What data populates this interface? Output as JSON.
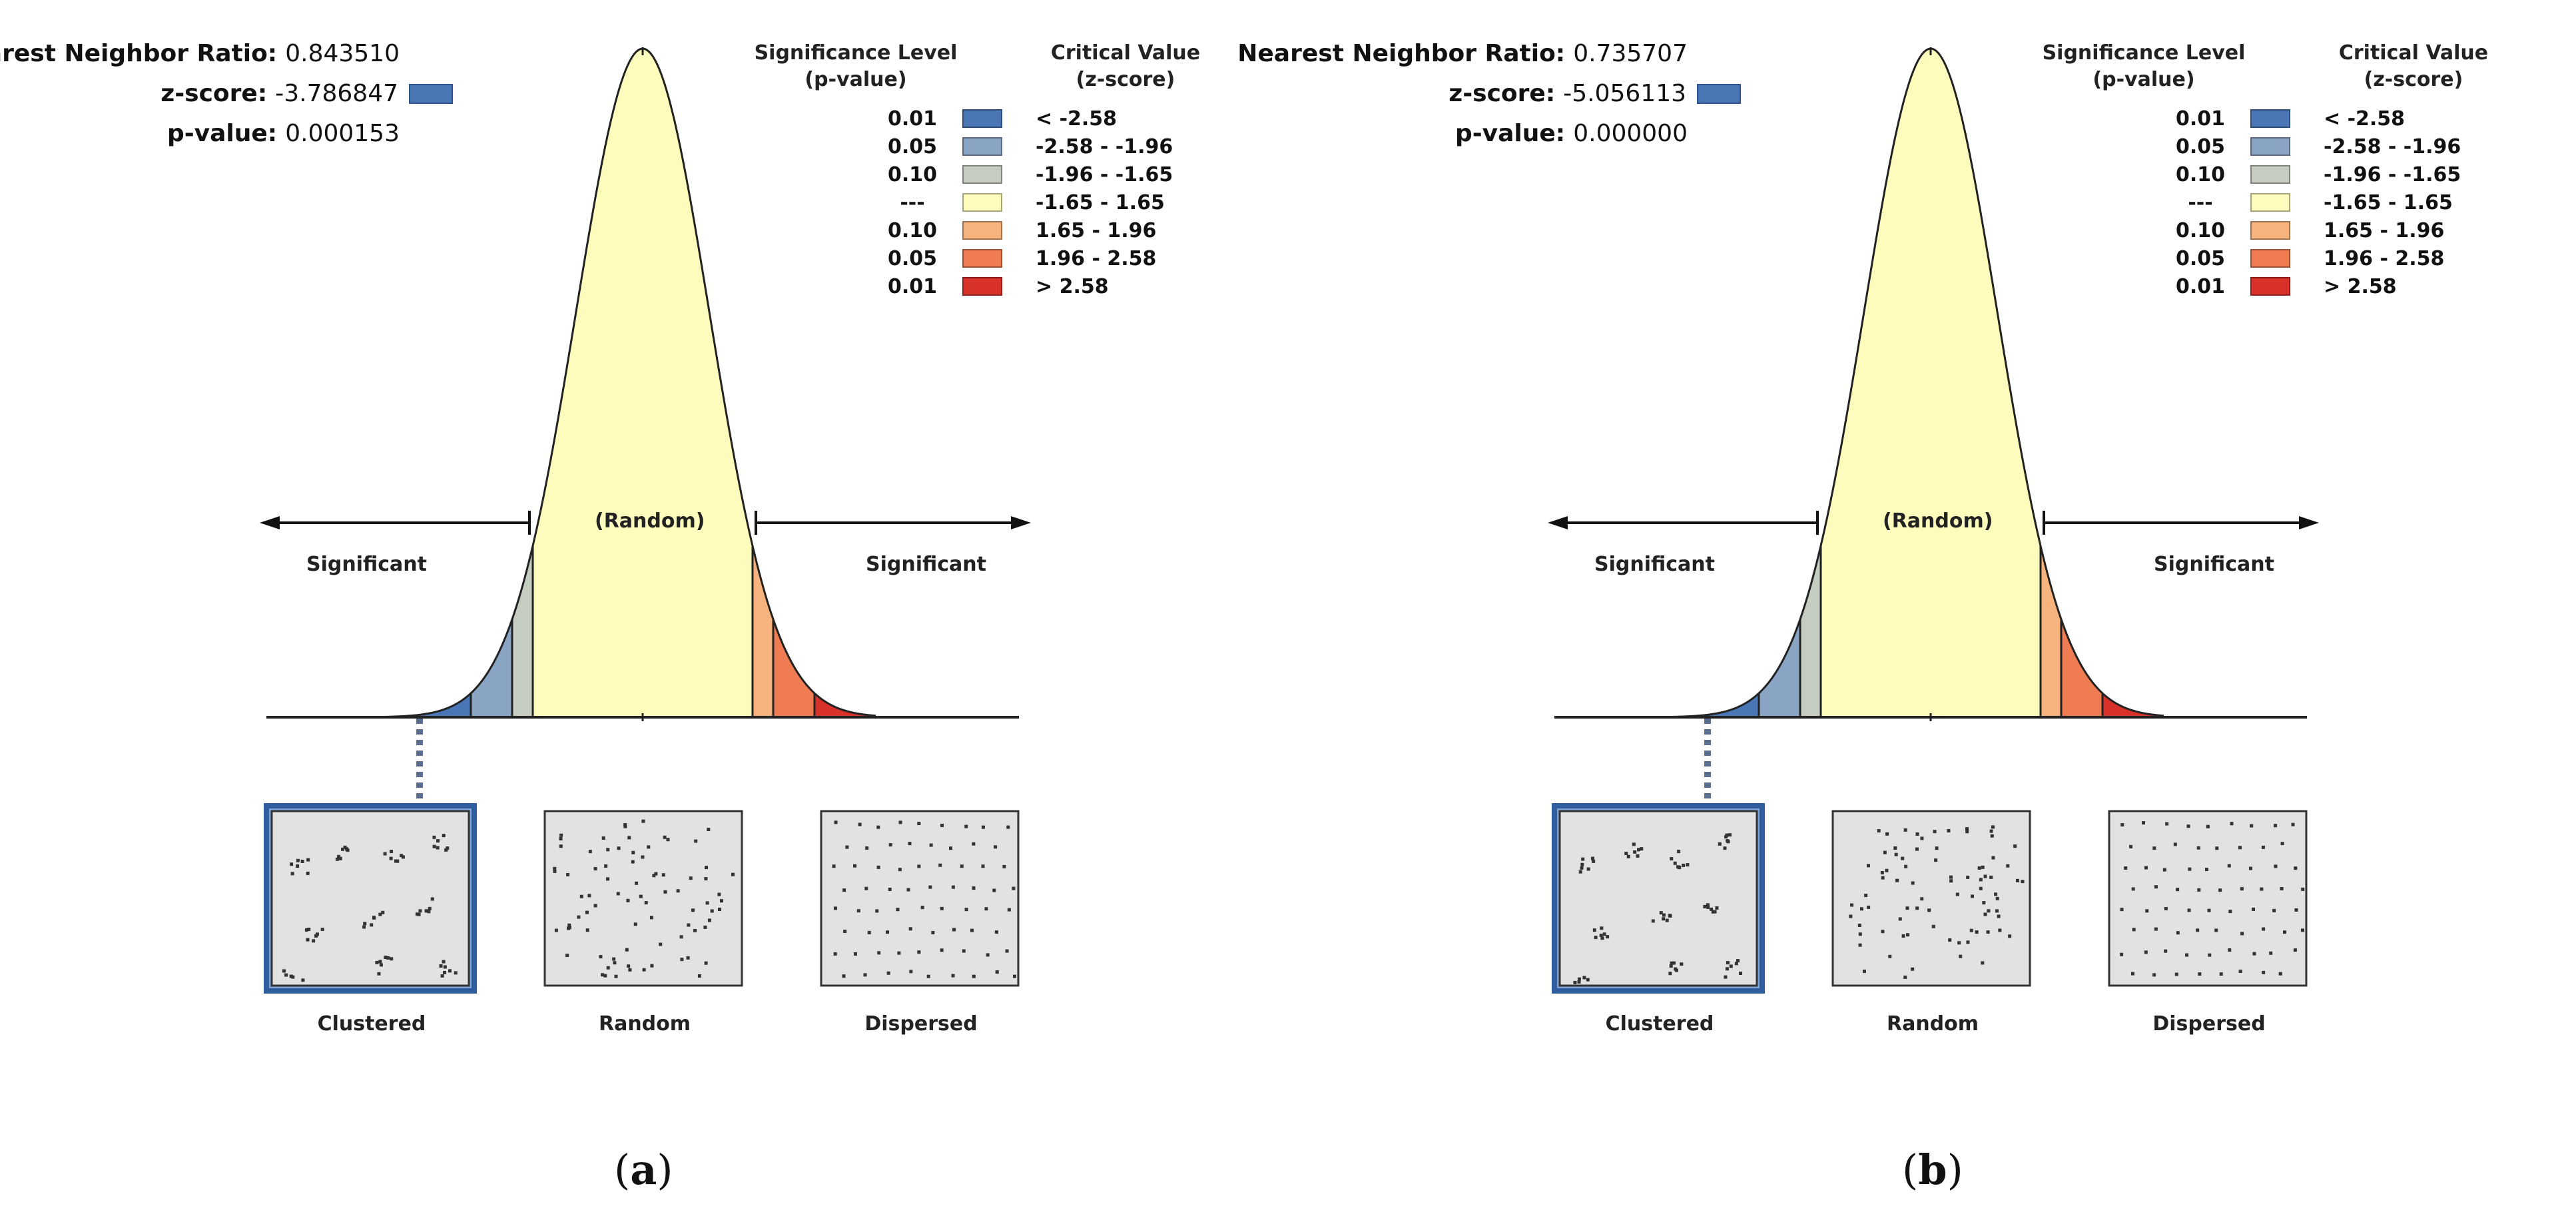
{
  "panels": [
    {
      "caption_letter": "a",
      "stats": {
        "nnr_label": "Nearest Neighbor Ratio:",
        "nnr_value": "0.843510",
        "z_label": "z-score:",
        "z_value": "-3.786847",
        "p_label": "p-value:",
        "p_value": "0.000153"
      },
      "pointer_band": 0
    },
    {
      "caption_letter": "b",
      "stats": {
        "nnr_label": "Nearest Neighbor Ratio:",
        "nnr_value": "0.735707",
        "z_label": "z-score:",
        "z_value": "-5.056113",
        "p_label": "p-value:",
        "p_value": "0.000000"
      },
      "pointer_band": 0
    }
  ],
  "legend": {
    "sig_header": [
      "Significance Level",
      "(p-value)"
    ],
    "crit_header": [
      "Critical Value",
      "(z-score)"
    ],
    "rows": [
      {
        "p": "0.01",
        "z": "< -2.58",
        "color": "#4a76b5"
      },
      {
        "p": "0.05",
        "z": "-2.58 - -1.96",
        "color": "#8aa4c4"
      },
      {
        "p": "0.10",
        "z": "-1.96 - -1.65",
        "color": "#c4cdc0"
      },
      {
        "p": "---",
        "z": "-1.65 - 1.65",
        "color": "#fdfcbd"
      },
      {
        "p": "0.10",
        "z": "1.65 - 1.96",
        "color": "#f6b37d"
      },
      {
        "p": "0.05",
        "z": "1.96 - 2.58",
        "color": "#ef7c52"
      },
      {
        "p": "0.01",
        "z": "> 2.58",
        "color": "#d8312a"
      }
    ]
  },
  "curve_labels": {
    "random": "(Random)",
    "significant_left": "Significant",
    "significant_right": "Significant"
  },
  "patterns": {
    "clustered": "Clustered",
    "random": "Random",
    "dispersed": "Dispersed"
  },
  "chart_data": [
    {
      "type": "area",
      "title": "",
      "x_breaks": [
        -2.58,
        -1.96,
        -1.65,
        1.65,
        1.96,
        2.58
      ],
      "series": [
        {
          "values": [
            -3.786847
          ]
        }
      ],
      "stats": {
        "nearest_neighbor_ratio": 0.84351,
        "z_score": -3.786847,
        "p_value": 0.000153
      }
    },
    {
      "type": "area",
      "title": "",
      "x_breaks": [
        -2.58,
        -1.96,
        -1.65,
        1.65,
        1.96,
        2.58
      ],
      "series": [
        {
          "values": [
            -5.056113
          ]
        }
      ],
      "stats": {
        "nearest_neighbor_ratio": 0.735707,
        "z_score": -5.056113,
        "p_value": 0.0
      }
    }
  ]
}
